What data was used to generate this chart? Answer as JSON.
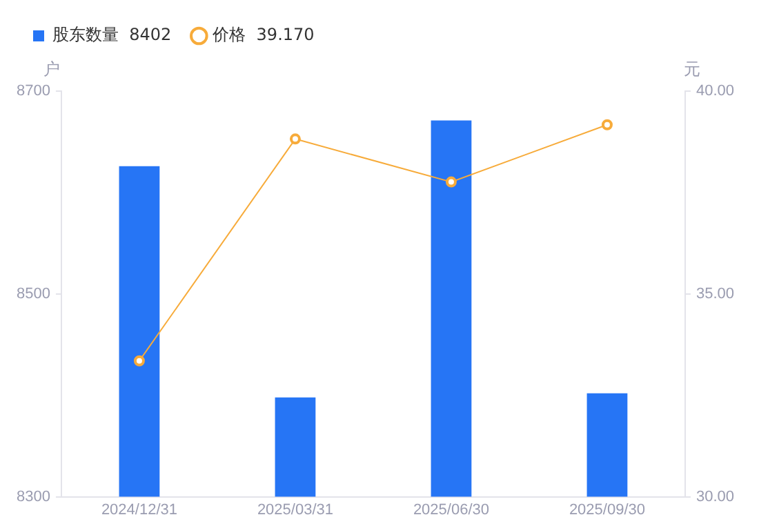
{
  "chart_data": {
    "type": "bar",
    "ylabel": "户",
    "y2label": "元",
    "categories": [
      "2024/12/31",
      "2025/03/31",
      "2025/06/30",
      "2025/09/30"
    ],
    "series": [
      {
        "name": "股东数量  8402",
        "color": "#2675f5",
        "values": [
          8626,
          8398,
          8671,
          8402
        ]
      },
      {
        "name": "价格  39.170",
        "type": "line",
        "axis": "y2",
        "color": "#f7ab3a",
        "values": [
          33.35,
          38.82,
          37.76,
          39.17
        ]
      }
    ],
    "ylim": [
      8300,
      8700
    ],
    "yticks": [
      8300,
      8500,
      8700
    ],
    "y2lim": [
      30,
      40
    ],
    "y2ticks": [
      {
        "value": 30,
        "label": "30.00"
      },
      {
        "value": 35,
        "label": "35.00"
      },
      {
        "value": 40,
        "label": "40.00"
      }
    ],
    "grid": false,
    "legend": "top left",
    "marker": "circle",
    "line_style": "solid"
  }
}
